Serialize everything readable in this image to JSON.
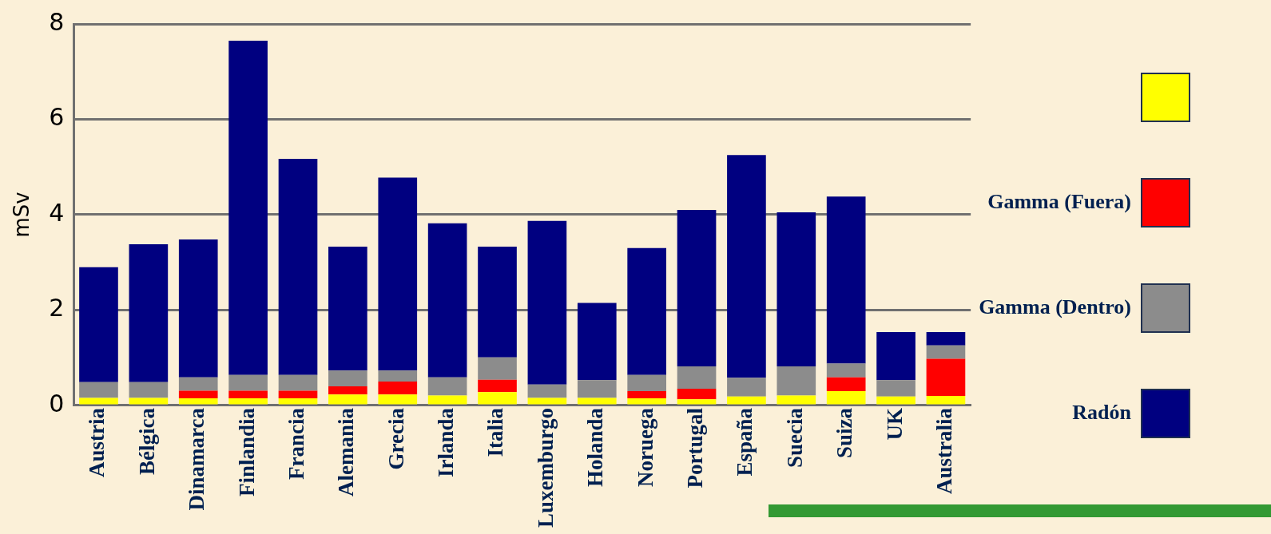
{
  "chart_data": {
    "type": "bar",
    "stacked": true,
    "ylabel": "mSv",
    "categories": [
      "Austria",
      "Bélgica",
      "Dinamarca",
      "Finlandia",
      "Francia",
      "Alemania",
      "Grecia",
      "Irlanda",
      "Italia",
      "Luxemburgo",
      "Holanda",
      "Noruega",
      "Portugal",
      "España",
      "Suecia",
      "Suiza",
      "UK",
      "Australia"
    ],
    "series": [
      {
        "color": "#ffff00",
        "values": [
          0.16,
          0.16,
          0.15,
          0.15,
          0.15,
          0.23,
          0.23,
          0.21,
          0.28,
          0.16,
          0.16,
          0.15,
          0.13,
          0.19,
          0.21,
          0.3,
          0.19,
          0.2
        ]
      },
      {
        "name": "Gamma (Fuera)",
        "color": "#ff0000",
        "values": [
          null,
          null,
          0.16,
          0.16,
          0.16,
          0.17,
          0.27,
          null,
          0.26,
          null,
          null,
          0.15,
          0.22,
          null,
          null,
          0.29,
          null,
          0.78
        ]
      },
      {
        "name": "Gamma (Dentro)",
        "color": "#8c8c8c",
        "values": [
          0.33,
          0.33,
          0.28,
          0.33,
          0.33,
          0.33,
          0.23,
          0.38,
          0.47,
          0.28,
          0.37,
          0.34,
          0.47,
          0.39,
          0.61,
          0.29,
          0.34,
          0.28
        ]
      },
      {
        "name": "Radón",
        "color": "#000080",
        "values": [
          2.41,
          2.89,
          2.89,
          7.01,
          4.53,
          2.6,
          4.05,
          3.23,
          2.32,
          3.43,
          1.62,
          2.66,
          3.28,
          4.67,
          3.23,
          3.5,
          1.01,
          0.28
        ]
      }
    ],
    "ylim": [
      0,
      8
    ],
    "yticks": [
      0,
      2,
      4,
      6,
      8
    ],
    "grid": "y",
    "legend": "right"
  }
}
